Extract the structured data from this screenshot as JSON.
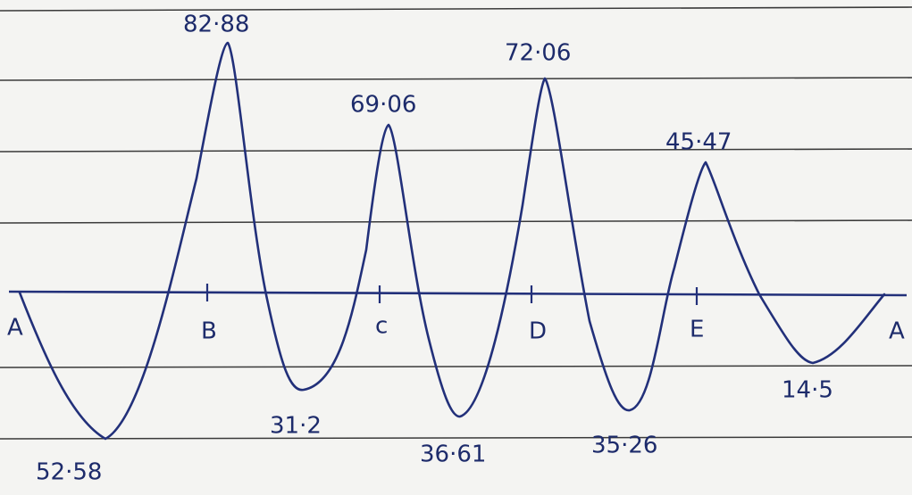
{
  "supports": [
    "A",
    "B",
    "c",
    "D",
    "E",
    "A"
  ],
  "extrema": [
    "52·58",
    "82·88",
    "31·2",
    "69·06",
    "36·61",
    "72·06",
    "35·26",
    "45·47",
    "14·5"
  ]
}
